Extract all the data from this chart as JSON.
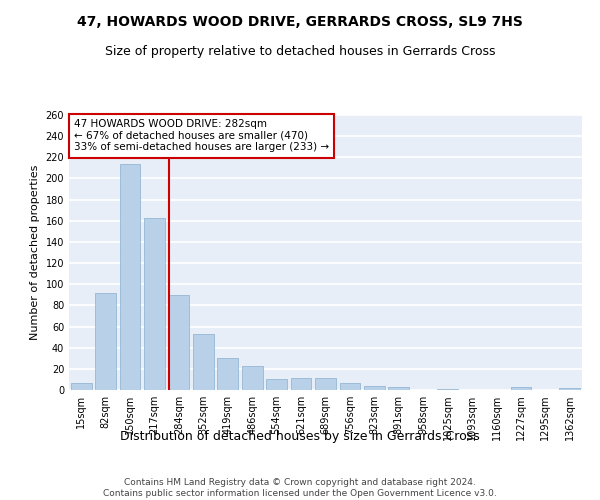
{
  "title": "47, HOWARDS WOOD DRIVE, GERRARDS CROSS, SL9 7HS",
  "subtitle": "Size of property relative to detached houses in Gerrards Cross",
  "xlabel": "Distribution of detached houses by size in Gerrards Cross",
  "ylabel": "Number of detached properties",
  "categories": [
    "15sqm",
    "82sqm",
    "150sqm",
    "217sqm",
    "284sqm",
    "352sqm",
    "419sqm",
    "486sqm",
    "554sqm",
    "621sqm",
    "689sqm",
    "756sqm",
    "823sqm",
    "891sqm",
    "958sqm",
    "1025sqm",
    "1093sqm",
    "1160sqm",
    "1227sqm",
    "1295sqm",
    "1362sqm"
  ],
  "values": [
    7,
    92,
    214,
    163,
    90,
    53,
    30,
    23,
    10,
    11,
    11,
    7,
    4,
    3,
    0,
    1,
    0,
    0,
    3,
    0,
    2
  ],
  "bar_color": "#b8d0e8",
  "bar_edgecolor": "#8ab0d0",
  "highlight_line_index": 4,
  "highlight_line_color": "#cc0000",
  "annotation_text": "47 HOWARDS WOOD DRIVE: 282sqm\n← 67% of detached houses are smaller (470)\n33% of semi-detached houses are larger (233) →",
  "annotation_box_color": "#ffffff",
  "annotation_box_edgecolor": "#cc0000",
  "ylim": [
    0,
    260
  ],
  "yticks": [
    0,
    20,
    40,
    60,
    80,
    100,
    120,
    140,
    160,
    180,
    200,
    220,
    240,
    260
  ],
  "background_color": "#e8eef8",
  "grid_color": "#ffffff",
  "footer_text": "Contains HM Land Registry data © Crown copyright and database right 2024.\nContains public sector information licensed under the Open Government Licence v3.0.",
  "title_fontsize": 10,
  "subtitle_fontsize": 9,
  "xlabel_fontsize": 9,
  "ylabel_fontsize": 8,
  "tick_fontsize": 7,
  "annotation_fontsize": 7.5,
  "footer_fontsize": 6.5
}
